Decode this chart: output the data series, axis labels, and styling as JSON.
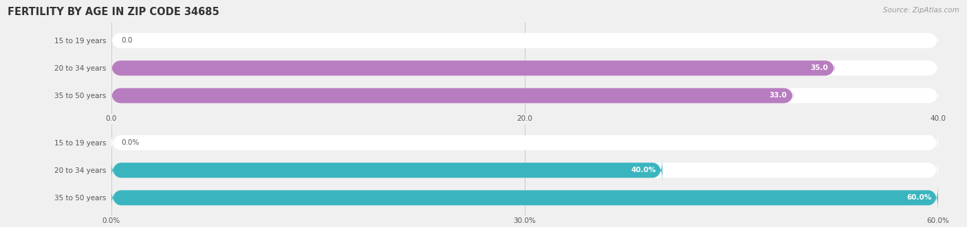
{
  "title": "FERTILITY BY AGE IN ZIP CODE 34685",
  "source": "Source: ZipAtlas.com",
  "top_chart": {
    "categories": [
      "15 to 19 years",
      "20 to 34 years",
      "35 to 50 years"
    ],
    "values": [
      0.0,
      35.0,
      33.0
    ],
    "bar_color": "#b87dc0",
    "bar_bg_color": "#ffffff",
    "xlim": [
      0,
      40
    ],
    "xticks": [
      0.0,
      20.0,
      40.0
    ],
    "xtick_labels": [
      "0.0",
      "20.0",
      "40.0"
    ],
    "value_labels": [
      "0.0",
      "35.0",
      "33.0"
    ]
  },
  "bottom_chart": {
    "categories": [
      "15 to 19 years",
      "20 to 34 years",
      "35 to 50 years"
    ],
    "values": [
      0.0,
      40.0,
      60.0
    ],
    "bar_color": "#3ab5bf",
    "bar_bg_color": "#ffffff",
    "xlim": [
      0,
      60
    ],
    "xticks": [
      0.0,
      30.0,
      60.0
    ],
    "xtick_labels": [
      "0.0%",
      "30.0%",
      "60.0%"
    ],
    "value_labels": [
      "0.0%",
      "40.0%",
      "60.0%"
    ]
  },
  "bg_color": "#f0f0f0",
  "bar_height": 0.55,
  "label_color": "#555555",
  "title_color": "#333333",
  "fig_width": 14.06,
  "fig_height": 3.31,
  "dpi": 100
}
